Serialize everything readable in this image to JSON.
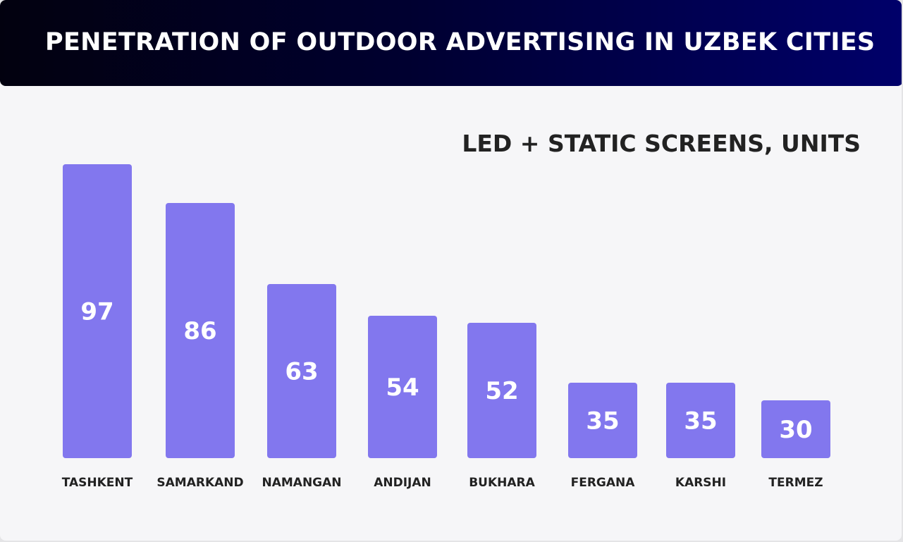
{
  "title": "PENETRATION OF OUTDOOR ADVERTISING IN UZBEK CITIES",
  "colors": {
    "bar": "#8277ee",
    "header_start": "#02010f",
    "header_end": "#00006a",
    "label": "#222222"
  },
  "chart_data": {
    "type": "bar",
    "title": "PENETRATION OF OUTDOOR ADVERTISING IN UZBEK CITIES",
    "subtitle": "LED + STATIC SCREENS, UNITS",
    "categories": [
      "TASHKENT",
      "SAMARKAND",
      "NAMANGAN",
      "ANDIJAN",
      "BUKHARA",
      "FERGANA",
      "KARSHI",
      "TERMEZ"
    ],
    "values": [
      97,
      86,
      63,
      54,
      52,
      35,
      35,
      30
    ],
    "data_labels": [
      "97",
      "86",
      "63",
      "54",
      "52",
      "35",
      "35",
      "30"
    ],
    "grid": false,
    "axes_visible": false
  }
}
